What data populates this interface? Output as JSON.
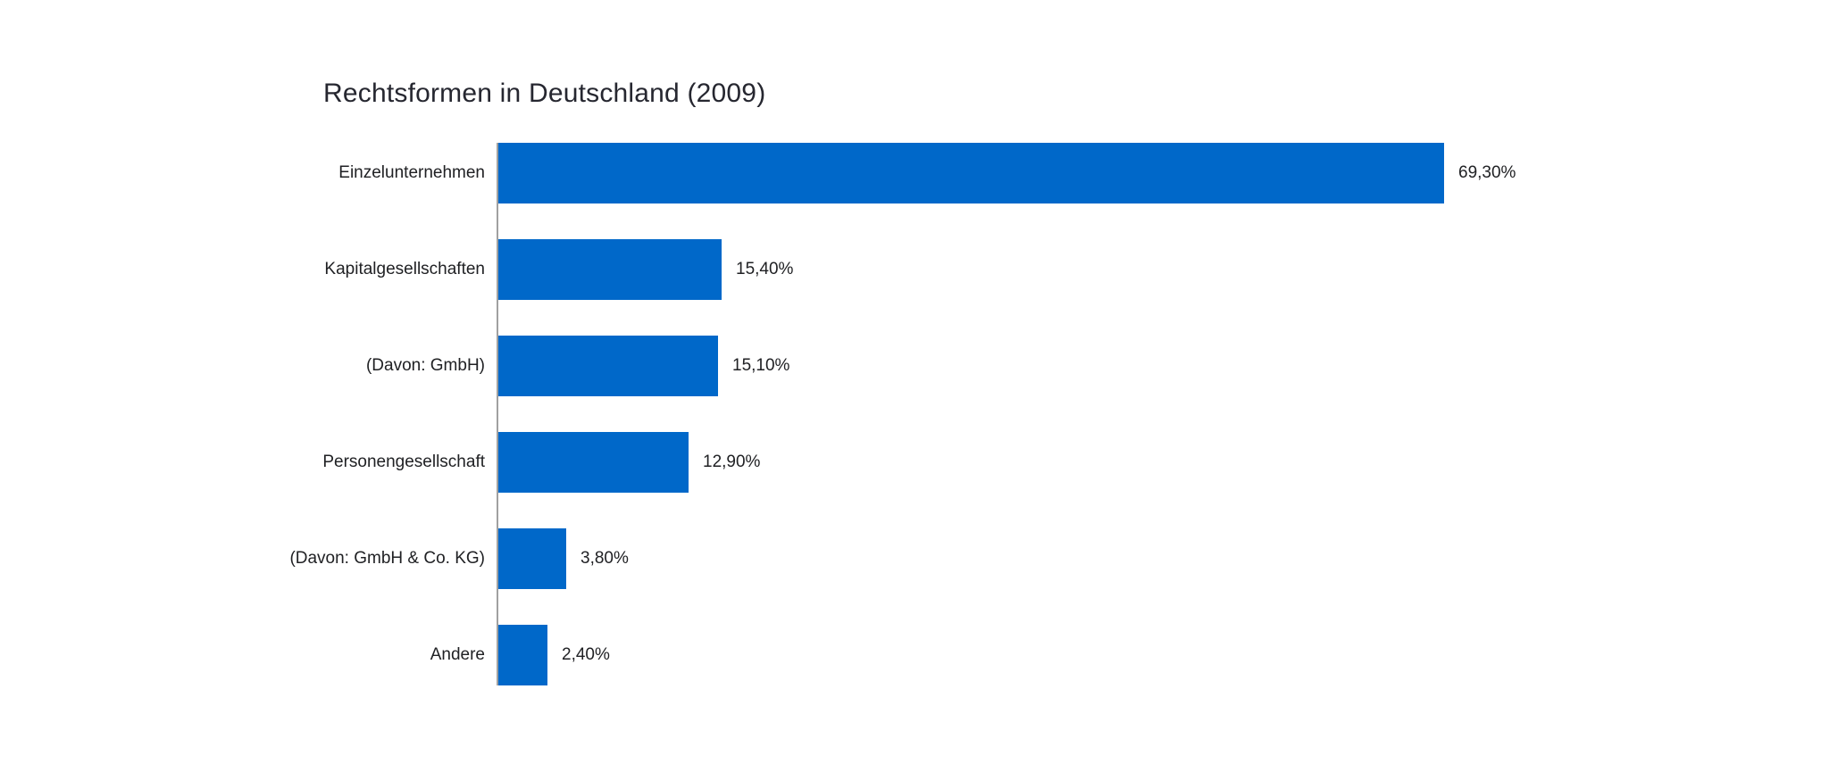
{
  "page": {
    "background_color": "#ffffff"
  },
  "chart_data": {
    "type": "bar",
    "orientation": "horizontal",
    "title": "Rechtsformen in Deutschland (2009)",
    "categories": [
      "Einzelunternehmen",
      "Kapitalgesellschaften",
      "(Davon: GmbH)",
      "Personengesellschaft",
      "(Davon: GmbH & Co. KG)",
      "Andere"
    ],
    "values": [
      69.3,
      15.4,
      15.1,
      12.9,
      3.8,
      2.4
    ],
    "value_labels": [
      "69,30%",
      "15,40%",
      "15,10%",
      "12,90%",
      "3,80%",
      "2,40%"
    ],
    "unit": "%",
    "xlim": [
      0,
      100
    ],
    "grid": false,
    "legend": false,
    "value_labels_position": "end-of-bar",
    "bar_color": "#0068c9",
    "axis_line_color": "#a0a0a0",
    "text_color": "#202124",
    "title_color": "#262730"
  }
}
